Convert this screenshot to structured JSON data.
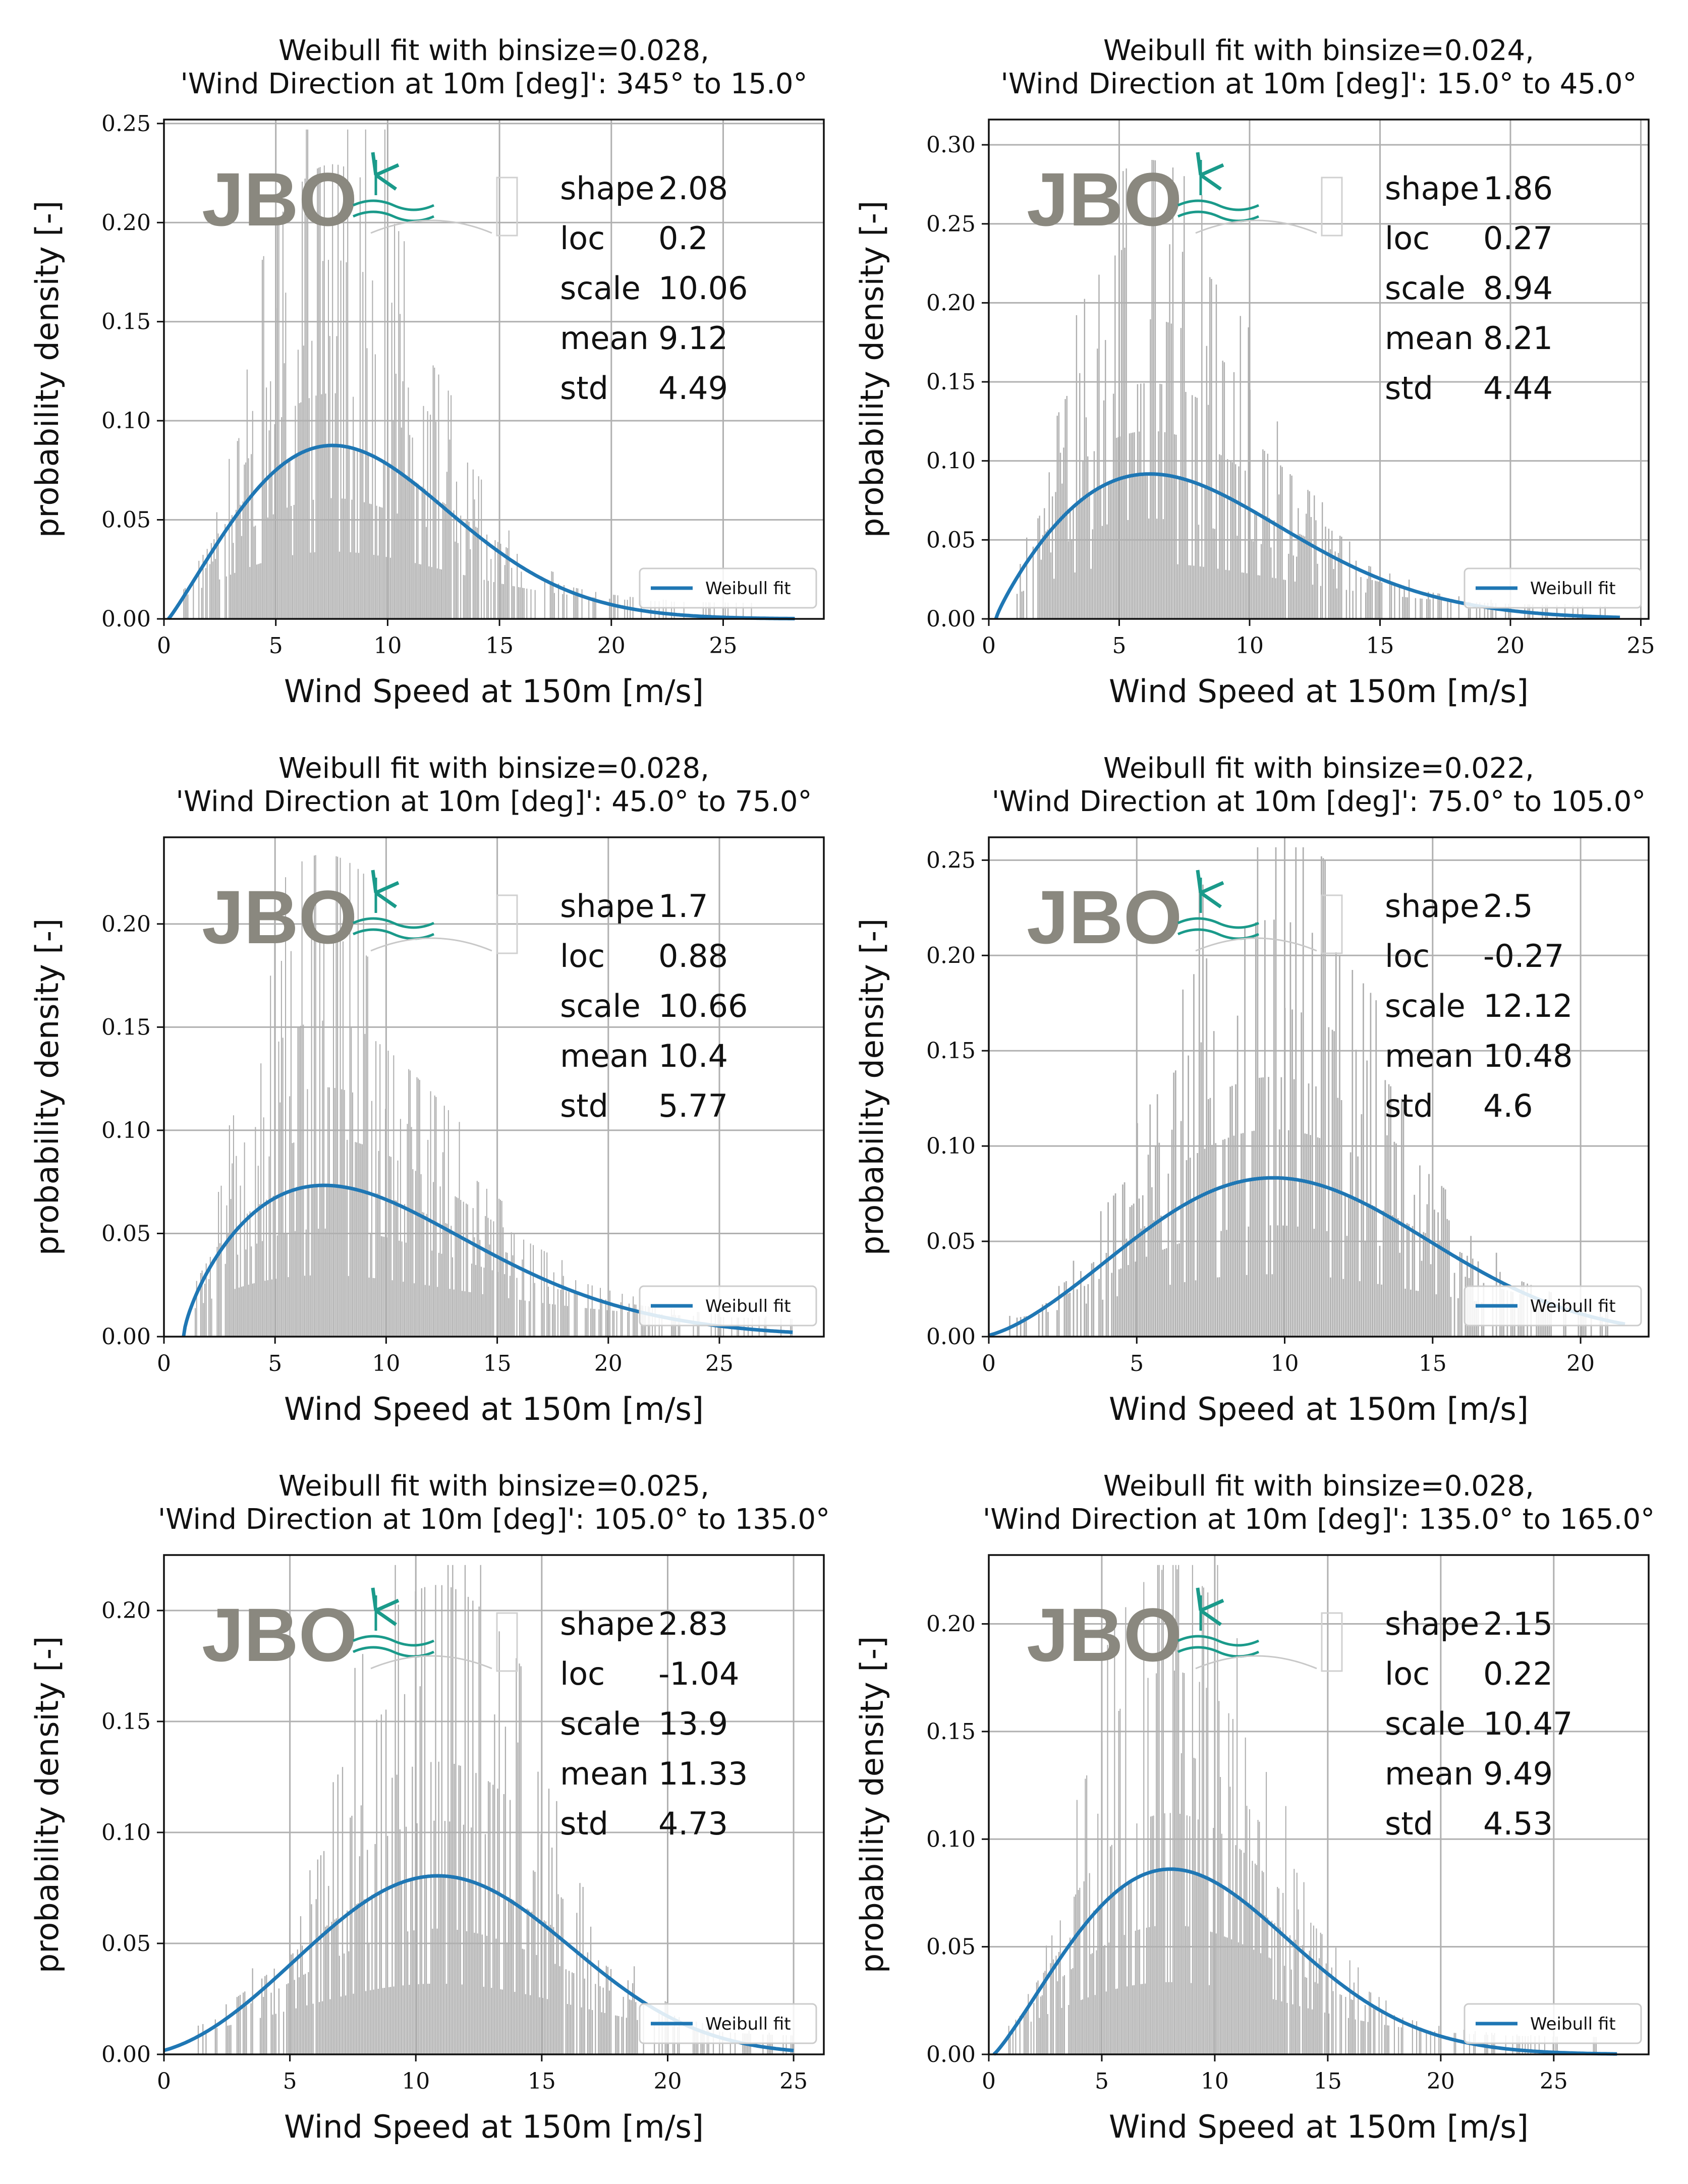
{
  "colors": {
    "fit_line": "#1f77b4",
    "hist": "#6b6b6b",
    "grid": "#b0b0b0",
    "logo_text": "#8a887f",
    "logo_accent": "#1a9a8a"
  },
  "logo": {
    "text": "JBO"
  },
  "chart_data": [
    {
      "type": "bar",
      "title": "Weibull fit with binsize=0.028,",
      "subtitle": "'Wind Direction at 10m [deg]': 345° to 15.0°",
      "xlabel": "Wind Speed at 150m [m/s]",
      "ylabel": "probability density [-]",
      "xlim": [
        0,
        29.5
      ],
      "ylim": [
        0,
        0.252
      ],
      "xticks": [
        0,
        5,
        10,
        15,
        20,
        25
      ],
      "xtick_labels": [
        "0",
        "5",
        "10",
        "15",
        "20",
        "25"
      ],
      "yticks": [
        0,
        0.05,
        0.1,
        0.15,
        0.2,
        0.25
      ],
      "ytick_labels": [
        "0.00",
        "0.05",
        "0.10",
        "0.15",
        "0.20",
        "0.25"
      ],
      "stats": [
        [
          "shape",
          "2.08"
        ],
        [
          "loc",
          "0.2"
        ],
        [
          "scale",
          "10.06"
        ],
        [
          "mean",
          "9.12"
        ],
        [
          "std",
          "4.49"
        ]
      ],
      "fit": {
        "shape": 2.08,
        "loc": 0.2,
        "scale": 10.06,
        "x_end": 28.2
      },
      "hist_range": [
        0.8,
        26.5
      ],
      "legend": "Weibull fit",
      "legend_position": "lower right",
      "grid": true
    },
    {
      "type": "bar",
      "title": "Weibull fit with binsize=0.024,",
      "subtitle": "'Wind Direction at 10m [deg]': 15.0° to 45.0°",
      "xlabel": "Wind Speed at 150m [m/s]",
      "ylabel": "probability density [-]",
      "xlim": [
        0,
        25.3
      ],
      "ylim": [
        0,
        0.316
      ],
      "xticks": [
        0,
        5,
        10,
        15,
        20,
        25
      ],
      "xtick_labels": [
        "0",
        "5",
        "10",
        "15",
        "20",
        "25"
      ],
      "yticks": [
        0,
        0.05,
        0.1,
        0.15,
        0.2,
        0.25,
        0.3
      ],
      "ytick_labels": [
        "0.00",
        "0.05",
        "0.10",
        "0.15",
        "0.20",
        "0.25",
        "0.30"
      ],
      "stats": [
        [
          "shape",
          "1.86"
        ],
        [
          "loc",
          "0.27"
        ],
        [
          "scale",
          "8.94"
        ],
        [
          "mean",
          "8.21"
        ],
        [
          "std",
          "4.44"
        ]
      ],
      "fit": {
        "shape": 1.86,
        "loc": 0.27,
        "scale": 8.94,
        "x_end": 24.2
      },
      "hist_range": [
        1.0,
        24.0
      ],
      "legend": "Weibull fit",
      "legend_position": "lower right",
      "grid": true
    },
    {
      "type": "bar",
      "title": "Weibull fit with binsize=0.028,",
      "subtitle": "'Wind Direction at 10m [deg]': 45.0° to 75.0°",
      "xlabel": "Wind Speed at 150m [m/s]",
      "ylabel": "probability density [-]",
      "xlim": [
        0,
        29.7
      ],
      "ylim": [
        0,
        0.242
      ],
      "xticks": [
        0,
        5,
        10,
        15,
        20,
        25
      ],
      "xtick_labels": [
        "0",
        "5",
        "10",
        "15",
        "20",
        "25"
      ],
      "yticks": [
        0,
        0.05,
        0.1,
        0.15,
        0.2
      ],
      "ytick_labels": [
        "0.00",
        "0.05",
        "0.10",
        "0.15",
        "0.20"
      ],
      "stats": [
        [
          "shape",
          "1.7"
        ],
        [
          "loc",
          "0.88"
        ],
        [
          "scale",
          "10.66"
        ],
        [
          "mean",
          "10.4"
        ],
        [
          "std",
          "5.77"
        ]
      ],
      "fit": {
        "shape": 1.7,
        "loc": 0.88,
        "scale": 10.66,
        "x_end": 28.3
      },
      "hist_range": [
        1.2,
        28.3
      ],
      "legend": "Weibull fit",
      "legend_position": "lower right",
      "grid": true
    },
    {
      "type": "bar",
      "title": "Weibull fit with binsize=0.022,",
      "subtitle": "'Wind Direction at 10m [deg]': 75.0° to 105.0°",
      "xlabel": "Wind Speed at 150m [m/s]",
      "ylabel": "probability density [-]",
      "xlim": [
        0,
        22.3
      ],
      "ylim": [
        0,
        0.262
      ],
      "xticks": [
        0,
        5,
        10,
        15,
        20
      ],
      "xtick_labels": [
        "0",
        "5",
        "10",
        "15",
        "20"
      ],
      "yticks": [
        0,
        0.05,
        0.1,
        0.15,
        0.2,
        0.25
      ],
      "ytick_labels": [
        "0.00",
        "0.05",
        "0.10",
        "0.15",
        "0.20",
        "0.25"
      ],
      "stats": [
        [
          "shape",
          "2.5"
        ],
        [
          "loc",
          "-0.27"
        ],
        [
          "scale",
          "12.12"
        ],
        [
          "mean",
          "10.48"
        ],
        [
          "std",
          "4.6"
        ]
      ],
      "fit": {
        "shape": 2.5,
        "loc": -0.27,
        "scale": 12.12,
        "x_end": 21.5
      },
      "hist_range": [
        0.5,
        21.3
      ],
      "legend": "Weibull fit",
      "legend_position": "lower right",
      "grid": true
    },
    {
      "type": "bar",
      "title": "Weibull fit with binsize=0.025,",
      "subtitle": "'Wind Direction at 10m [deg]': 105.0° to 135.0°",
      "xlabel": "Wind Speed at 150m [m/s]",
      "ylabel": "probability density [-]",
      "xlim": [
        0,
        26.2
      ],
      "ylim": [
        0,
        0.225
      ],
      "xticks": [
        0,
        5,
        10,
        15,
        20,
        25
      ],
      "xtick_labels": [
        "0",
        "5",
        "10",
        "15",
        "20",
        "25"
      ],
      "yticks": [
        0,
        0.05,
        0.1,
        0.15,
        0.2
      ],
      "ytick_labels": [
        "0.00",
        "0.05",
        "0.10",
        "0.15",
        "0.20"
      ],
      "stats": [
        [
          "shape",
          "2.83"
        ],
        [
          "loc",
          "-1.04"
        ],
        [
          "scale",
          "13.9"
        ],
        [
          "mean",
          "11.33"
        ],
        [
          "std",
          "4.73"
        ]
      ],
      "fit": {
        "shape": 2.83,
        "loc": -1.04,
        "scale": 13.9,
        "x_end": 25.0
      },
      "hist_range": [
        0.6,
        25.0
      ],
      "legend": "Weibull fit",
      "legend_position": "lower right",
      "grid": true
    },
    {
      "type": "bar",
      "title": "Weibull fit with binsize=0.028,",
      "subtitle": "'Wind Direction at 10m [deg]': 135.0° to 165.0°",
      "xlabel": "Wind Speed at 150m [m/s]",
      "ylabel": "probability density [-]",
      "xlim": [
        0,
        29.2
      ],
      "ylim": [
        0,
        0.232
      ],
      "xticks": [
        0,
        5,
        10,
        15,
        20,
        25
      ],
      "xtick_labels": [
        "0",
        "5",
        "10",
        "15",
        "20",
        "25"
      ],
      "yticks": [
        0,
        0.05,
        0.1,
        0.15,
        0.2
      ],
      "ytick_labels": [
        "0.00",
        "0.05",
        "0.10",
        "0.15",
        "0.20"
      ],
      "stats": [
        [
          "shape",
          "2.15"
        ],
        [
          "loc",
          "0.22"
        ],
        [
          "scale",
          "10.47"
        ],
        [
          "mean",
          "9.49"
        ],
        [
          "std",
          "4.53"
        ]
      ],
      "fit": {
        "shape": 2.15,
        "loc": 0.22,
        "scale": 10.47,
        "x_end": 27.8
      },
      "hist_range": [
        0.8,
        27.7
      ],
      "legend": "Weibull fit",
      "legend_position": "lower right",
      "grid": true
    }
  ]
}
